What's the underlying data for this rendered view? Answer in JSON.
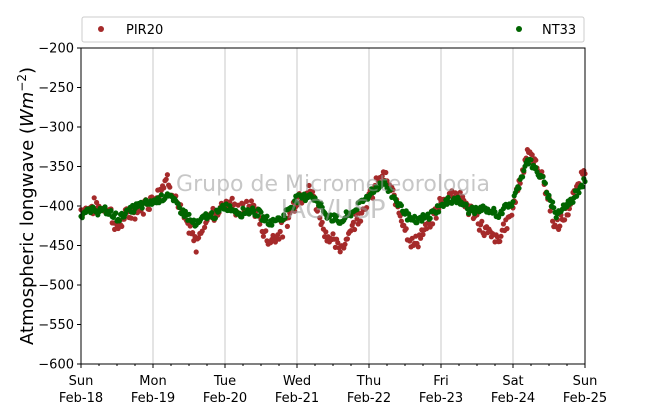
{
  "chart_data": {
    "type": "scatter",
    "ylabel_main": "Atmospheric longwave (",
    "ylabel_unit": "Wm",
    "ylabel_exp": "−2",
    "ylabel_close": ")",
    "ylim": [
      -600,
      -200
    ],
    "yticks": [
      -200,
      -250,
      -300,
      -350,
      -400,
      -450,
      -500,
      -550,
      -600
    ],
    "ytick_labels": [
      "−200",
      "−250",
      "−300",
      "−350",
      "−400",
      "−450",
      "−500",
      "−550",
      "−600"
    ],
    "xlim": [
      "2018-02-18 00:00",
      "2018-02-25 00:00"
    ],
    "xticks": [
      {
        "day": "Sun",
        "date": "Feb-18"
      },
      {
        "day": "Mon",
        "date": "Feb-19"
      },
      {
        "day": "Tue",
        "date": "Feb-20"
      },
      {
        "day": "Wed",
        "date": "Feb-21"
      },
      {
        "day": "Thu",
        "date": "Feb-22"
      },
      {
        "day": "Fri",
        "date": "Feb-23"
      },
      {
        "day": "Sat",
        "date": "Feb-24"
      },
      {
        "day": "Sun",
        "date": "Feb-25"
      }
    ],
    "grid": "vertical lines at day boundaries",
    "legend_position": "top, above plot",
    "watermark": [
      "Grupo de Micrometeorologia",
      "IAG/USP"
    ],
    "series": [
      {
        "name": "PIR20",
        "color": "#a52a2a",
        "x": [
          0,
          0.2,
          0.4,
          0.5,
          0.6,
          0.8,
          1,
          1.2,
          1.4,
          1.6,
          1.7,
          1.9,
          2,
          2.2,
          2.4,
          2.6,
          2.8,
          3,
          3.2,
          3.4,
          3.6,
          3.8,
          4,
          4.2,
          4.4,
          4.6,
          4.8,
          5,
          5.2,
          5.4,
          5.6,
          5.8,
          6,
          6.2,
          6.4,
          6.6,
          6.8,
          7
        ],
        "y": [
          -405,
          -400,
          -405,
          -430,
          -415,
          -405,
          -390,
          -365,
          -410,
          -450,
          -420,
          -405,
          -395,
          -405,
          -400,
          -445,
          -430,
          -390,
          -380,
          -435,
          -455,
          -420,
          -390,
          -360,
          -400,
          -450,
          -430,
          -395,
          -380,
          -405,
          -430,
          -445,
          -400,
          -330,
          -360,
          -430,
          -400,
          -350
        ]
      },
      {
        "name": "NT33",
        "color": "#006400",
        "x": [
          0,
          0.2,
          0.4,
          0.5,
          0.6,
          0.8,
          1,
          1.2,
          1.4,
          1.6,
          1.7,
          1.9,
          2,
          2.2,
          2.4,
          2.6,
          2.8,
          3,
          3.2,
          3.4,
          3.6,
          3.8,
          4,
          4.2,
          4.4,
          4.6,
          4.8,
          5,
          5.2,
          5.4,
          5.6,
          5.8,
          6,
          6.2,
          6.4,
          6.6,
          6.8,
          7
        ],
        "y": [
          -410,
          -405,
          -408,
          -415,
          -410,
          -400,
          -395,
          -385,
          -405,
          -425,
          -415,
          -410,
          -400,
          -408,
          -405,
          -420,
          -415,
          -390,
          -385,
          -410,
          -420,
          -405,
          -385,
          -370,
          -395,
          -420,
          -415,
          -400,
          -390,
          -405,
          -405,
          -410,
          -395,
          -340,
          -365,
          -410,
          -395,
          -365
        ]
      }
    ]
  }
}
